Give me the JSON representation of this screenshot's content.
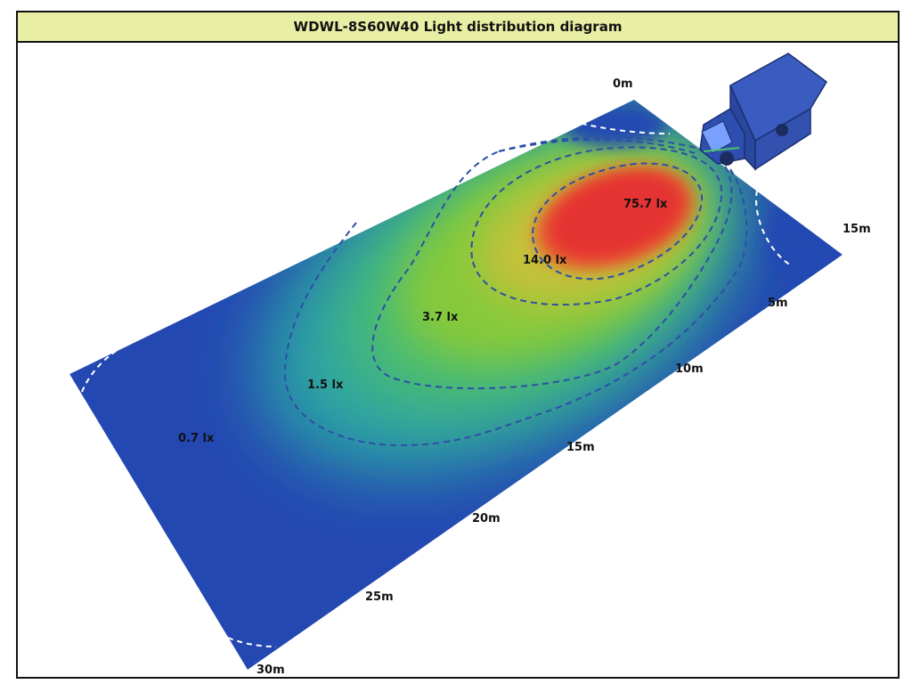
{
  "diagram": {
    "title": "WDWL-8S60W40 Light distribution diagram",
    "illuminance_labels": [
      "75.7 lx",
      "14.0 lx",
      "3.7 lx",
      "1.5 lx",
      "0.7 lx"
    ],
    "length_labels": [
      "0m",
      "10m",
      "15m",
      "20m",
      "25m",
      "30m"
    ],
    "width_labels": [
      "5m",
      "15m"
    ],
    "colors": {
      "title_background": "#e8efa4",
      "low": "#1f47b0",
      "mid": "#7fc83a",
      "high": "#e83232",
      "contour": "#2d4fa6",
      "edge_contour": "#ffffff",
      "truck": "#2e4fb0"
    }
  }
}
